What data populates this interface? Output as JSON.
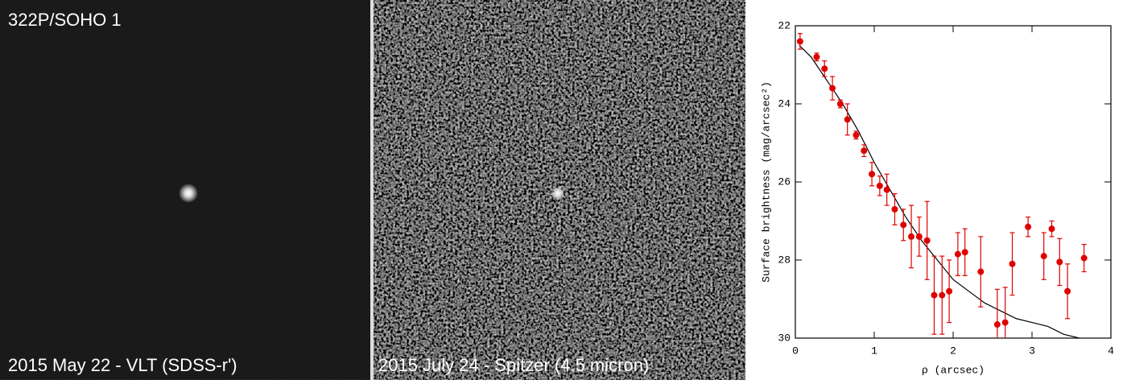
{
  "images": [
    {
      "title": "322P/SOHO 1",
      "label": "2015 May 22 - VLT (SDSS-r')"
    },
    {
      "label": "2015 July 24 - Spitzer (4.5 micron)"
    }
  ],
  "chart_data": {
    "type": "scatter",
    "xlabel": "ρ (arcsec)",
    "ylabel": "Surface brightness (mag/arcsec²)",
    "x": [
      0.06,
      0.27,
      0.37,
      0.47,
      0.57,
      0.66,
      0.77,
      0.87,
      0.97,
      1.07,
      1.16,
      1.26,
      1.37,
      1.47,
      1.57,
      1.67,
      1.76,
      1.86,
      1.95,
      2.06,
      2.15,
      2.35,
      2.56,
      2.66,
      2.75,
      2.95,
      3.15,
      3.25,
      3.35,
      3.45,
      3.66
    ],
    "values": [
      22.4,
      22.8,
      23.1,
      23.6,
      24.0,
      24.4,
      24.8,
      25.2,
      25.8,
      26.1,
      26.2,
      26.7,
      27.1,
      27.4,
      27.4,
      27.5,
      28.9,
      28.9,
      28.8,
      27.85,
      27.8,
      28.3,
      29.65,
      29.6,
      28.1,
      27.15,
      27.9,
      27.2,
      28.05,
      28.8,
      27.95
    ],
    "errors": [
      0.2,
      0.1,
      0.2,
      0.3,
      0.1,
      0.4,
      0.1,
      0.15,
      0.3,
      0.25,
      0.4,
      0.4,
      0.4,
      0.8,
      0.5,
      1.0,
      1.0,
      1.0,
      0.8,
      0.55,
      0.6,
      0.9,
      0.9,
      0.9,
      0.8,
      0.25,
      0.6,
      0.2,
      0.6,
      0.7,
      0.35
    ],
    "color": "#e00000",
    "model": {
      "x": [
        0.05,
        0.2,
        0.4,
        0.6,
        0.8,
        1.0,
        1.2,
        1.4,
        1.6,
        1.8,
        2.0,
        2.2,
        2.4,
        2.6,
        2.8,
        3.0,
        3.2,
        3.4,
        3.6
      ],
      "values": [
        22.5,
        22.8,
        23.4,
        24.0,
        24.7,
        25.5,
        26.2,
        26.9,
        27.5,
        28.0,
        28.5,
        28.8,
        29.1,
        29.3,
        29.5,
        29.6,
        29.7,
        29.9,
        30.0
      ],
      "color": "#000000"
    },
    "xlim": [
      0,
      4
    ],
    "xticks": [
      0,
      1,
      2,
      3,
      4
    ],
    "ylim": [
      22,
      30
    ],
    "yticks": [
      22,
      24,
      26,
      28,
      30
    ],
    "y_inverted": true
  }
}
